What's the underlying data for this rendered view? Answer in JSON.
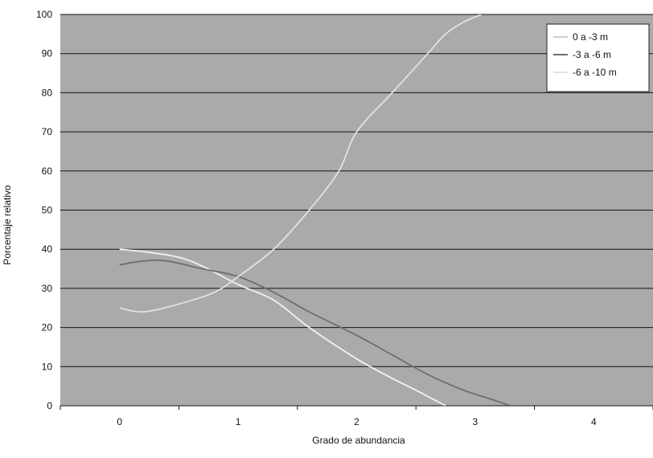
{
  "chart_data": {
    "type": "line",
    "xlabel": "Grado de abundancia",
    "ylabel": "Porcentaje relativo",
    "xlim": [
      -0.5,
      4.5
    ],
    "ylim": [
      0,
      100
    ],
    "x_ticks": [
      "0",
      "1",
      "2",
      "3",
      "4"
    ],
    "y_ticks": [
      "0",
      "10",
      "20",
      "30",
      "40",
      "50",
      "60",
      "70",
      "80",
      "90",
      "100"
    ],
    "grid": true,
    "legend_position": "top-right",
    "plot_background": "#aaaaaa",
    "series": [
      {
        "name": "0 a -3 m",
        "color": "#f2f2f2",
        "points": [
          [
            0,
            40
          ],
          [
            0.3,
            39
          ],
          [
            0.6,
            37
          ],
          [
            1,
            31
          ],
          [
            1.3,
            27
          ],
          [
            1.6,
            20
          ],
          [
            2,
            12
          ],
          [
            2.3,
            7
          ],
          [
            2.5,
            4
          ],
          [
            2.75,
            0
          ]
        ]
      },
      {
        "name": "-3 a -6 m",
        "color": "#6e6e6e",
        "points": [
          [
            0,
            36
          ],
          [
            0.2,
            37
          ],
          [
            0.4,
            37
          ],
          [
            0.7,
            35
          ],
          [
            1,
            33
          ],
          [
            1.3,
            29
          ],
          [
            1.6,
            24
          ],
          [
            2,
            18
          ],
          [
            2.3,
            13
          ],
          [
            2.6,
            8
          ],
          [
            2.9,
            4
          ],
          [
            3.1,
            2
          ],
          [
            3.3,
            0
          ]
        ]
      },
      {
        "name": "-6 a -10 m",
        "color": "#e2e2e2",
        "points": [
          [
            0,
            25
          ],
          [
            0.2,
            24
          ],
          [
            0.5,
            26
          ],
          [
            0.8,
            29
          ],
          [
            1,
            33
          ],
          [
            1.3,
            40
          ],
          [
            1.6,
            50
          ],
          [
            1.85,
            60
          ],
          [
            2,
            70
          ],
          [
            2.3,
            80
          ],
          [
            2.6,
            90
          ],
          [
            2.75,
            95
          ],
          [
            2.9,
            98
          ],
          [
            3.05,
            100
          ]
        ]
      }
    ]
  }
}
